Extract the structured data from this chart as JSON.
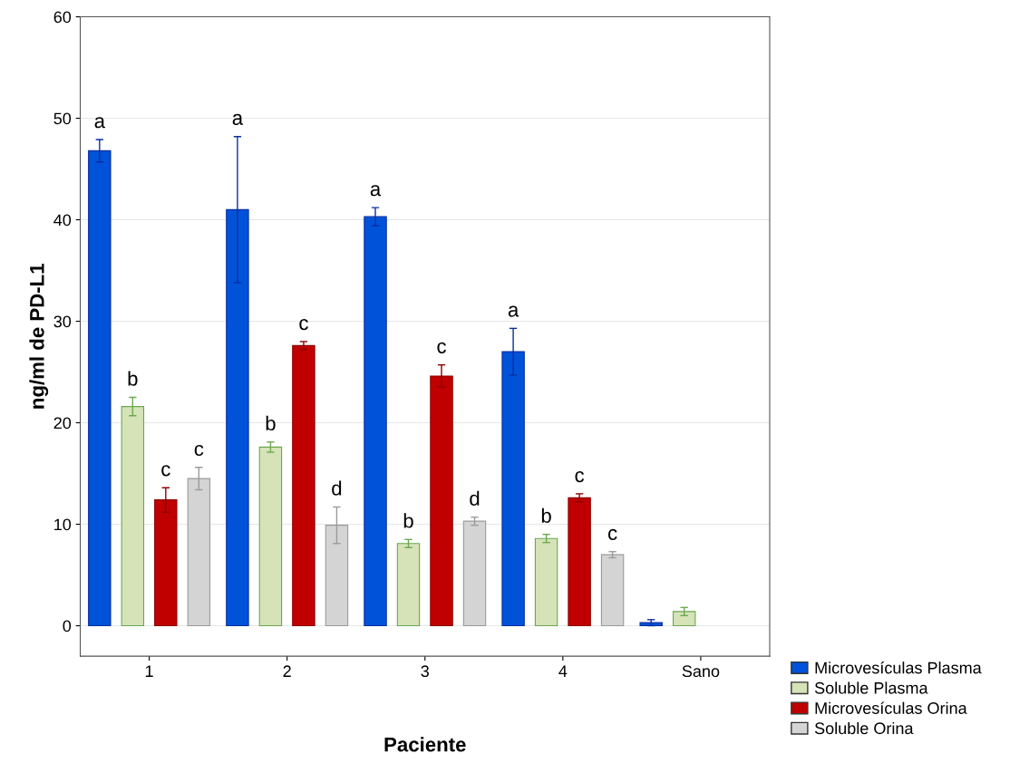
{
  "chart_data": {
    "type": "bar",
    "xlabel": "Paciente",
    "ylabel": "ng/ml de PD-L1",
    "categories": [
      "1",
      "2",
      "3",
      "4",
      "Sano"
    ],
    "series": [
      {
        "name": "Microvesículas Plasma",
        "color": "#0052d9",
        "values": [
          46.8,
          41.0,
          40.3,
          27.0,
          0.3
        ],
        "errors": [
          1.1,
          7.2,
          0.9,
          2.3,
          0.3
        ]
      },
      {
        "name": "Soluble Plasma",
        "color": "#d6e2b8",
        "values": [
          21.6,
          17.6,
          8.1,
          8.6,
          1.4
        ],
        "errors": [
          0.9,
          0.5,
          0.4,
          0.4,
          0.4
        ]
      },
      {
        "name": "Microvesículas Orina",
        "color": "#c00000",
        "values": [
          12.4,
          27.6,
          24.6,
          12.6,
          null
        ],
        "errors": [
          1.2,
          0.4,
          1.1,
          0.4,
          null
        ]
      },
      {
        "name": "Soluble Orina",
        "color": "#d4d4d4",
        "values": [
          14.5,
          9.9,
          10.3,
          7.0,
          null
        ],
        "errors": [
          1.1,
          1.8,
          0.4,
          0.3,
          null
        ]
      }
    ],
    "ylim": [
      -3,
      60
    ],
    "yticks": [
      0,
      10,
      20,
      30,
      40,
      50,
      60
    ],
    "grid": "y",
    "legend": "bottom right",
    "annotations": [
      "a",
      "b",
      "c",
      "c",
      "a",
      "b",
      "c",
      "d",
      "a",
      "b",
      "c",
      "d",
      "a",
      "b",
      "c",
      "c"
    ]
  }
}
